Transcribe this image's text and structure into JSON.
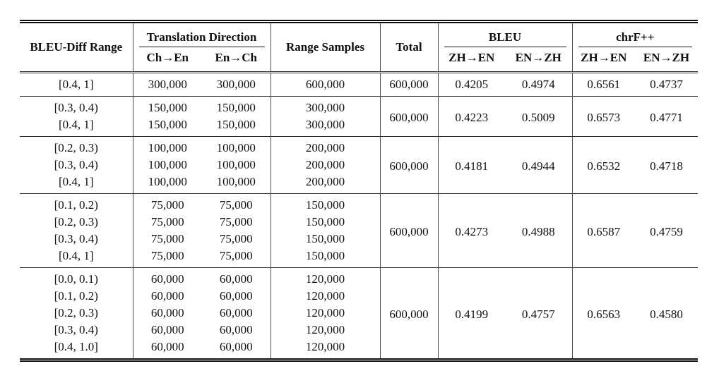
{
  "page": {
    "background": "#ffffff",
    "text_color": "#111111",
    "rule_color": "#101010"
  },
  "table": {
    "header": {
      "bleu_diff_range": "BLEU-Diff Range",
      "translation_direction": "Translation Direction",
      "ch_to_en": "Ch→En",
      "en_to_ch": "En→Ch",
      "range_samples": "Range Samples",
      "total": "Total",
      "bleu": "BLEU",
      "chrf": "chrF++",
      "zh_to_en": "ZH→EN",
      "en_to_zh": "EN→ZH"
    },
    "groups": [
      {
        "rows": [
          {
            "range": "[0.4, 1]",
            "ch_en": "300,000",
            "en_ch": "300,000",
            "samples": "600,000"
          }
        ],
        "total": "600,000",
        "bleu_zh_en": "0.4205",
        "bleu_en_zh": "0.4974",
        "chrf_zh_en": "0.6561",
        "chrf_en_zh": "0.4737"
      },
      {
        "rows": [
          {
            "range": "[0.3, 0.4)",
            "ch_en": "150,000",
            "en_ch": "150,000",
            "samples": "300,000"
          },
          {
            "range": "[0.4, 1]",
            "ch_en": "150,000",
            "en_ch": "150,000",
            "samples": "300,000"
          }
        ],
        "total": "600,000",
        "bleu_zh_en": "0.4223",
        "bleu_en_zh": "0.5009",
        "chrf_zh_en": "0.6573",
        "chrf_en_zh": "0.4771"
      },
      {
        "rows": [
          {
            "range": "[0.2, 0.3)",
            "ch_en": "100,000",
            "en_ch": "100,000",
            "samples": "200,000"
          },
          {
            "range": "[0.3, 0.4)",
            "ch_en": "100,000",
            "en_ch": "100,000",
            "samples": "200,000"
          },
          {
            "range": "[0.4, 1]",
            "ch_en": "100,000",
            "en_ch": "100,000",
            "samples": "200,000"
          }
        ],
        "total": "600,000",
        "bleu_zh_en": "0.4181",
        "bleu_en_zh": "0.4944",
        "chrf_zh_en": "0.6532",
        "chrf_en_zh": "0.4718"
      },
      {
        "rows": [
          {
            "range": "[0.1, 0.2)",
            "ch_en": "75,000",
            "en_ch": "75,000",
            "samples": "150,000"
          },
          {
            "range": "[0.2, 0.3)",
            "ch_en": "75,000",
            "en_ch": "75,000",
            "samples": "150,000"
          },
          {
            "range": "[0.3, 0.4)",
            "ch_en": "75,000",
            "en_ch": "75,000",
            "samples": "150,000"
          },
          {
            "range": "[0.4, 1]",
            "ch_en": "75,000",
            "en_ch": "75,000",
            "samples": "150,000"
          }
        ],
        "total": "600,000",
        "bleu_zh_en": "0.4273",
        "bleu_en_zh": "0.4988",
        "chrf_zh_en": "0.6587",
        "chrf_en_zh": "0.4759"
      },
      {
        "rows": [
          {
            "range": "[0.0, 0.1)",
            "ch_en": "60,000",
            "en_ch": "60,000",
            "samples": "120,000"
          },
          {
            "range": "[0.1, 0.2)",
            "ch_en": "60,000",
            "en_ch": "60,000",
            "samples": "120,000"
          },
          {
            "range": "[0.2, 0.3)",
            "ch_en": "60,000",
            "en_ch": "60,000",
            "samples": "120,000"
          },
          {
            "range": "[0.3, 0.4)",
            "ch_en": "60,000",
            "en_ch": "60,000",
            "samples": "120,000"
          },
          {
            "range": "[0.4, 1.0]",
            "ch_en": "60,000",
            "en_ch": "60,000",
            "samples": "120,000"
          }
        ],
        "total": "600,000",
        "bleu_zh_en": "0.4199",
        "bleu_en_zh": "0.4757",
        "chrf_zh_en": "0.6563",
        "chrf_en_zh": "0.4580"
      }
    ]
  }
}
